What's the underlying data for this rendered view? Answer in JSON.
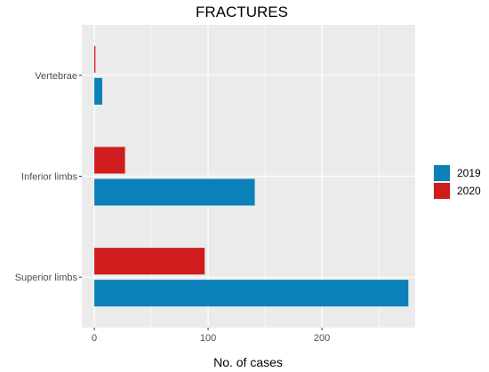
{
  "chart_data": {
    "type": "bar",
    "orientation": "horizontal",
    "title": "FRACTURES",
    "xlabel": "No. of cases",
    "ylabel": "",
    "categories": [
      "Vertebrae",
      "Inferior limbs",
      "Superior limbs"
    ],
    "series": [
      {
        "name": "2019",
        "color": "#0a81b8",
        "values": [
          7,
          141,
          276
        ]
      },
      {
        "name": "2020",
        "color": "#d01c1c",
        "values": [
          1,
          27,
          97
        ]
      }
    ],
    "xlim": [
      -11,
      282
    ],
    "xticks": [
      0,
      100,
      200
    ],
    "grid": true,
    "legend": "right",
    "panel_background": "#ebebeb"
  }
}
